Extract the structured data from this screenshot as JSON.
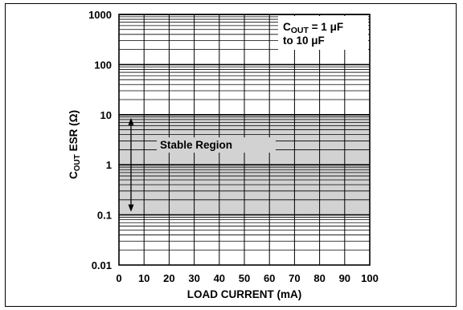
{
  "chart_data": {
    "type": "area",
    "xlabel": "LOAD CURRENT (mA)",
    "ylabel_main": "C",
    "ylabel_sub": "OUT",
    "ylabel_rest": " ESR (Ω)",
    "y_scale": "log",
    "xlim": [
      0,
      100
    ],
    "ylim": [
      0.01,
      1000
    ],
    "x_ticks": [
      "0",
      "10",
      "20",
      "30",
      "40",
      "50",
      "60",
      "70",
      "80",
      "90",
      "100"
    ],
    "y_ticks": [
      "0.01",
      "0.1",
      "1",
      "10",
      "100",
      "1000"
    ],
    "grid": true,
    "stable_region": {
      "label": "Stable Region",
      "esr_min": 0.1,
      "esr_max": 10,
      "x_range": [
        0,
        100
      ]
    },
    "condition_note": {
      "line1_main": "C",
      "line1_sub": "OUT",
      "line1_rest": " = 1 μF",
      "line2": "to 10 μF"
    },
    "colors": {
      "region_fill": "#d2d2d2",
      "grid": "#000000"
    }
  }
}
